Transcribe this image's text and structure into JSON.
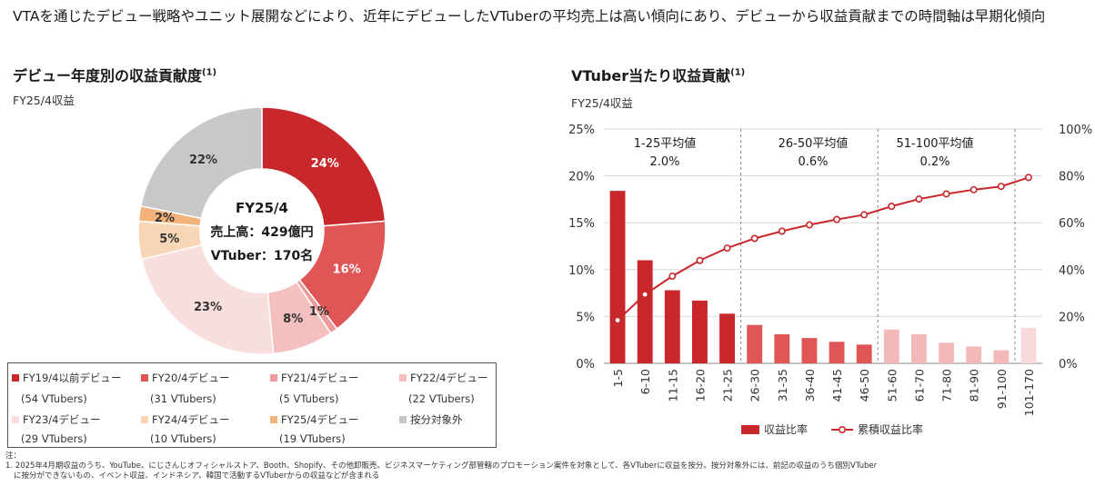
{
  "headline": "VTAを通じたデビュー戦略やユニット展開などにより、近年にデビューしたVTuberの平均売上は高い傾向にあり、デビューから収益貢献までの時間軸は早期化傾向",
  "left_panel": {
    "title": "デビュー年度別の収益貢献度",
    "title_note": "(1)",
    "subtitle": "FY25/4収益",
    "center_line1": "FY25/4",
    "center_line2": "売上高：429億円",
    "center_line3": "VTuber：170名",
    "legend": [
      {
        "label": "FY19/4以前デビュー",
        "count": "(54 VTubers)",
        "color": "#c8282b"
      },
      {
        "label": "FY20/4デビュー",
        "count": "(31 VTubers)",
        "color": "#e05656"
      },
      {
        "label": "FY21/4デビュー",
        "count": "(5 VTubers)",
        "color": "#ec9a9a"
      },
      {
        "label": "FY22/4デビュー",
        "count": "(22 VTubers)",
        "color": "#f3bfbf"
      },
      {
        "label": "FY23/4デビュー",
        "count": "(29 VTubers)",
        "color": "#f9dede"
      },
      {
        "label": "FY24/4デビュー",
        "count": "(10 VTubers)",
        "color": "#f8d6b6"
      },
      {
        "label": "FY25/4デビュー",
        "count": "(19 VTubers)",
        "color": "#f2b27a"
      },
      {
        "label": "按分対象外",
        "count": "",
        "color": "#c8c8c8"
      }
    ]
  },
  "right_panel": {
    "title": "VTuber当たり収益貢献",
    "title_note": "(1)",
    "subtitle": "FY25/4収益",
    "groups": [
      {
        "label": "1-25平均値",
        "value": "2.0%"
      },
      {
        "label": "26-50平均値",
        "value": "0.6%"
      },
      {
        "label": "51-100平均値",
        "value": "0.2%"
      }
    ],
    "legend_bar": "収益比率",
    "legend_line": "累積収益比率"
  },
  "chart_data": [
    {
      "type": "pie",
      "variant": "donut",
      "categories": [
        "FY19/4以前デビュー",
        "FY20/4デビュー",
        "FY21/4デビュー",
        "FY22/4デビュー",
        "FY23/4デビュー",
        "FY24/4デビュー",
        "FY25/4デビュー",
        "按分対象外"
      ],
      "values": [
        24,
        16,
        1,
        8,
        23,
        5,
        2,
        22
      ],
      "labels": [
        "24%",
        "16%",
        "1%",
        "8%",
        "23%",
        "5%",
        "2%",
        "22%"
      ],
      "colors": [
        "#c8282b",
        "#e05656",
        "#ec9a9a",
        "#f3bfbf",
        "#f9dede",
        "#f8d6b6",
        "#f2b27a",
        "#c8c8c8"
      ],
      "title": "デビュー年度別の収益貢献度"
    },
    {
      "type": "bar",
      "title": "VTuber当たり収益貢献",
      "categories": [
        "1-5",
        "6-10",
        "11-15",
        "16-20",
        "21-25",
        "26-30",
        "31-35",
        "36-40",
        "41-45",
        "46-50",
        "51-60",
        "61-70",
        "71-80",
        "81-90",
        "91-100",
        "101-170"
      ],
      "series": [
        {
          "name": "収益比率",
          "axis": "left",
          "values": [
            18.4,
            11.0,
            7.8,
            6.7,
            5.3,
            4.1,
            3.1,
            2.7,
            2.3,
            2.0,
            3.6,
            3.1,
            2.2,
            1.8,
            1.4,
            3.8
          ],
          "colors": [
            "#c8282b",
            "#c8282b",
            "#c8282b",
            "#c8282b",
            "#c8282b",
            "#e05656",
            "#e05656",
            "#e05656",
            "#e05656",
            "#e05656",
            "#f3b9b9",
            "#f3b9b9",
            "#f3b9b9",
            "#f3b9b9",
            "#f3b9b9",
            "#f9dada"
          ]
        },
        {
          "name": "累積収益比率",
          "axis": "right",
          "type": "line",
          "values": [
            18.4,
            29.4,
            37.2,
            43.9,
            49.2,
            53.3,
            56.4,
            59.1,
            61.4,
            63.4,
            67.0,
            70.1,
            72.3,
            74.1,
            75.5,
            79.3
          ]
        }
      ],
      "y_left": {
        "min": 0,
        "max": 25,
        "ticks": [
          "0%",
          "5%",
          "10%",
          "15%",
          "20%",
          "25%"
        ]
      },
      "y_right": {
        "min": 0,
        "max": 100,
        "ticks": [
          "0%",
          "20%",
          "40%",
          "60%",
          "80%",
          "100%"
        ]
      },
      "group_dividers_after": [
        "21-25",
        "46-50",
        "91-100"
      ],
      "grid": true,
      "legend": "bottom"
    }
  ],
  "notes": {
    "heading": "注：",
    "line1": "1. 2025年4月期収益のうち、YouTube、にじさんじオフィシャルストア、Booth、Shopify、その他卸販売、ビジネスマーケティング部管轄のプロモーション案件を対象として、各VTuberに収益を按分。按分対象外には、前記の収益のうち個別VTuber",
    "line2": "に按分ができないもの、イベント収益、インドネシア、韓国で活動するVTuberからの収益などが含まれる"
  }
}
